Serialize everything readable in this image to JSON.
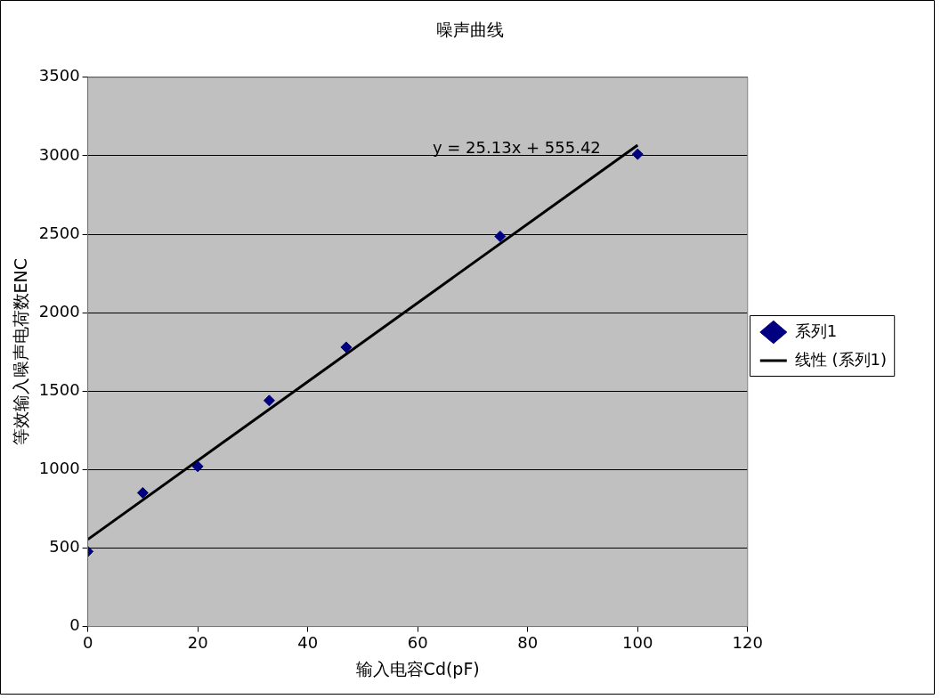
{
  "chart_data": {
    "type": "scatter",
    "title": "噪声曲线",
    "xlabel": "输入电容Cd(pF)",
    "ylabel": "等效输入噪声电荷数ENC",
    "x": [
      0,
      10,
      20,
      33,
      47,
      75,
      100
    ],
    "series": [
      {
        "name": "系列1",
        "color": "#000080",
        "values": [
          478,
          852,
          1020,
          1440,
          1780,
          2486,
          3010
        ],
        "marker": "diamond"
      },
      {
        "name": "线性 (系列1)",
        "type": "line",
        "color": "#000000",
        "x": [
          0,
          100
        ],
        "values": [
          555,
          3068
        ],
        "marker": "none"
      }
    ],
    "xlim": [
      0,
      120
    ],
    "xticks": [
      0,
      20,
      40,
      60,
      80,
      100,
      120
    ],
    "ylim": [
      0,
      3500
    ],
    "yticks": [
      0,
      500,
      1000,
      1500,
      2000,
      2500,
      3000,
      3500
    ],
    "grid": "y",
    "legend": "right",
    "annotations": [
      "y = 25.13x + 555.42"
    ]
  }
}
